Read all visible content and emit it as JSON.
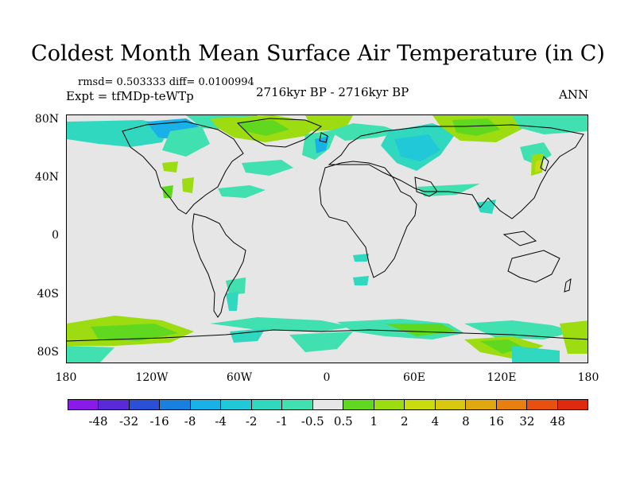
{
  "title": "Coldest Month Mean Surface Air Temperature (in C)",
  "stats": "rmsd= 0.503333 diff= 0.0100994",
  "experiment": "Expt = tfMDp-teWTp",
  "period": "2716kyr BP - 2716kyr BP",
  "season": "ANN",
  "lat_labels": [
    "80N",
    "40N",
    "0",
    "40S",
    "80S"
  ],
  "lon_labels": [
    "180",
    "120W",
    "60W",
    "0",
    "60E",
    "120E",
    "180"
  ],
  "colorbar": {
    "colors": [
      "#8a1ae8",
      "#5a2ad8",
      "#2a50d8",
      "#1a80e0",
      "#18b2e8",
      "#20c8d8",
      "#30d8c0",
      "#40e0b0",
      "#e6e6e6",
      "#60d820",
      "#9cdc10",
      "#c8dc10",
      "#d8c810",
      "#e0a810",
      "#e88010",
      "#e85010",
      "#e02a10"
    ],
    "labels": [
      "-48",
      "-32",
      "-16",
      "-8",
      "-4",
      "-2",
      "-1",
      "-0.5",
      "0.5",
      "1",
      "2",
      "4",
      "8",
      "16",
      "32",
      "48"
    ]
  }
}
